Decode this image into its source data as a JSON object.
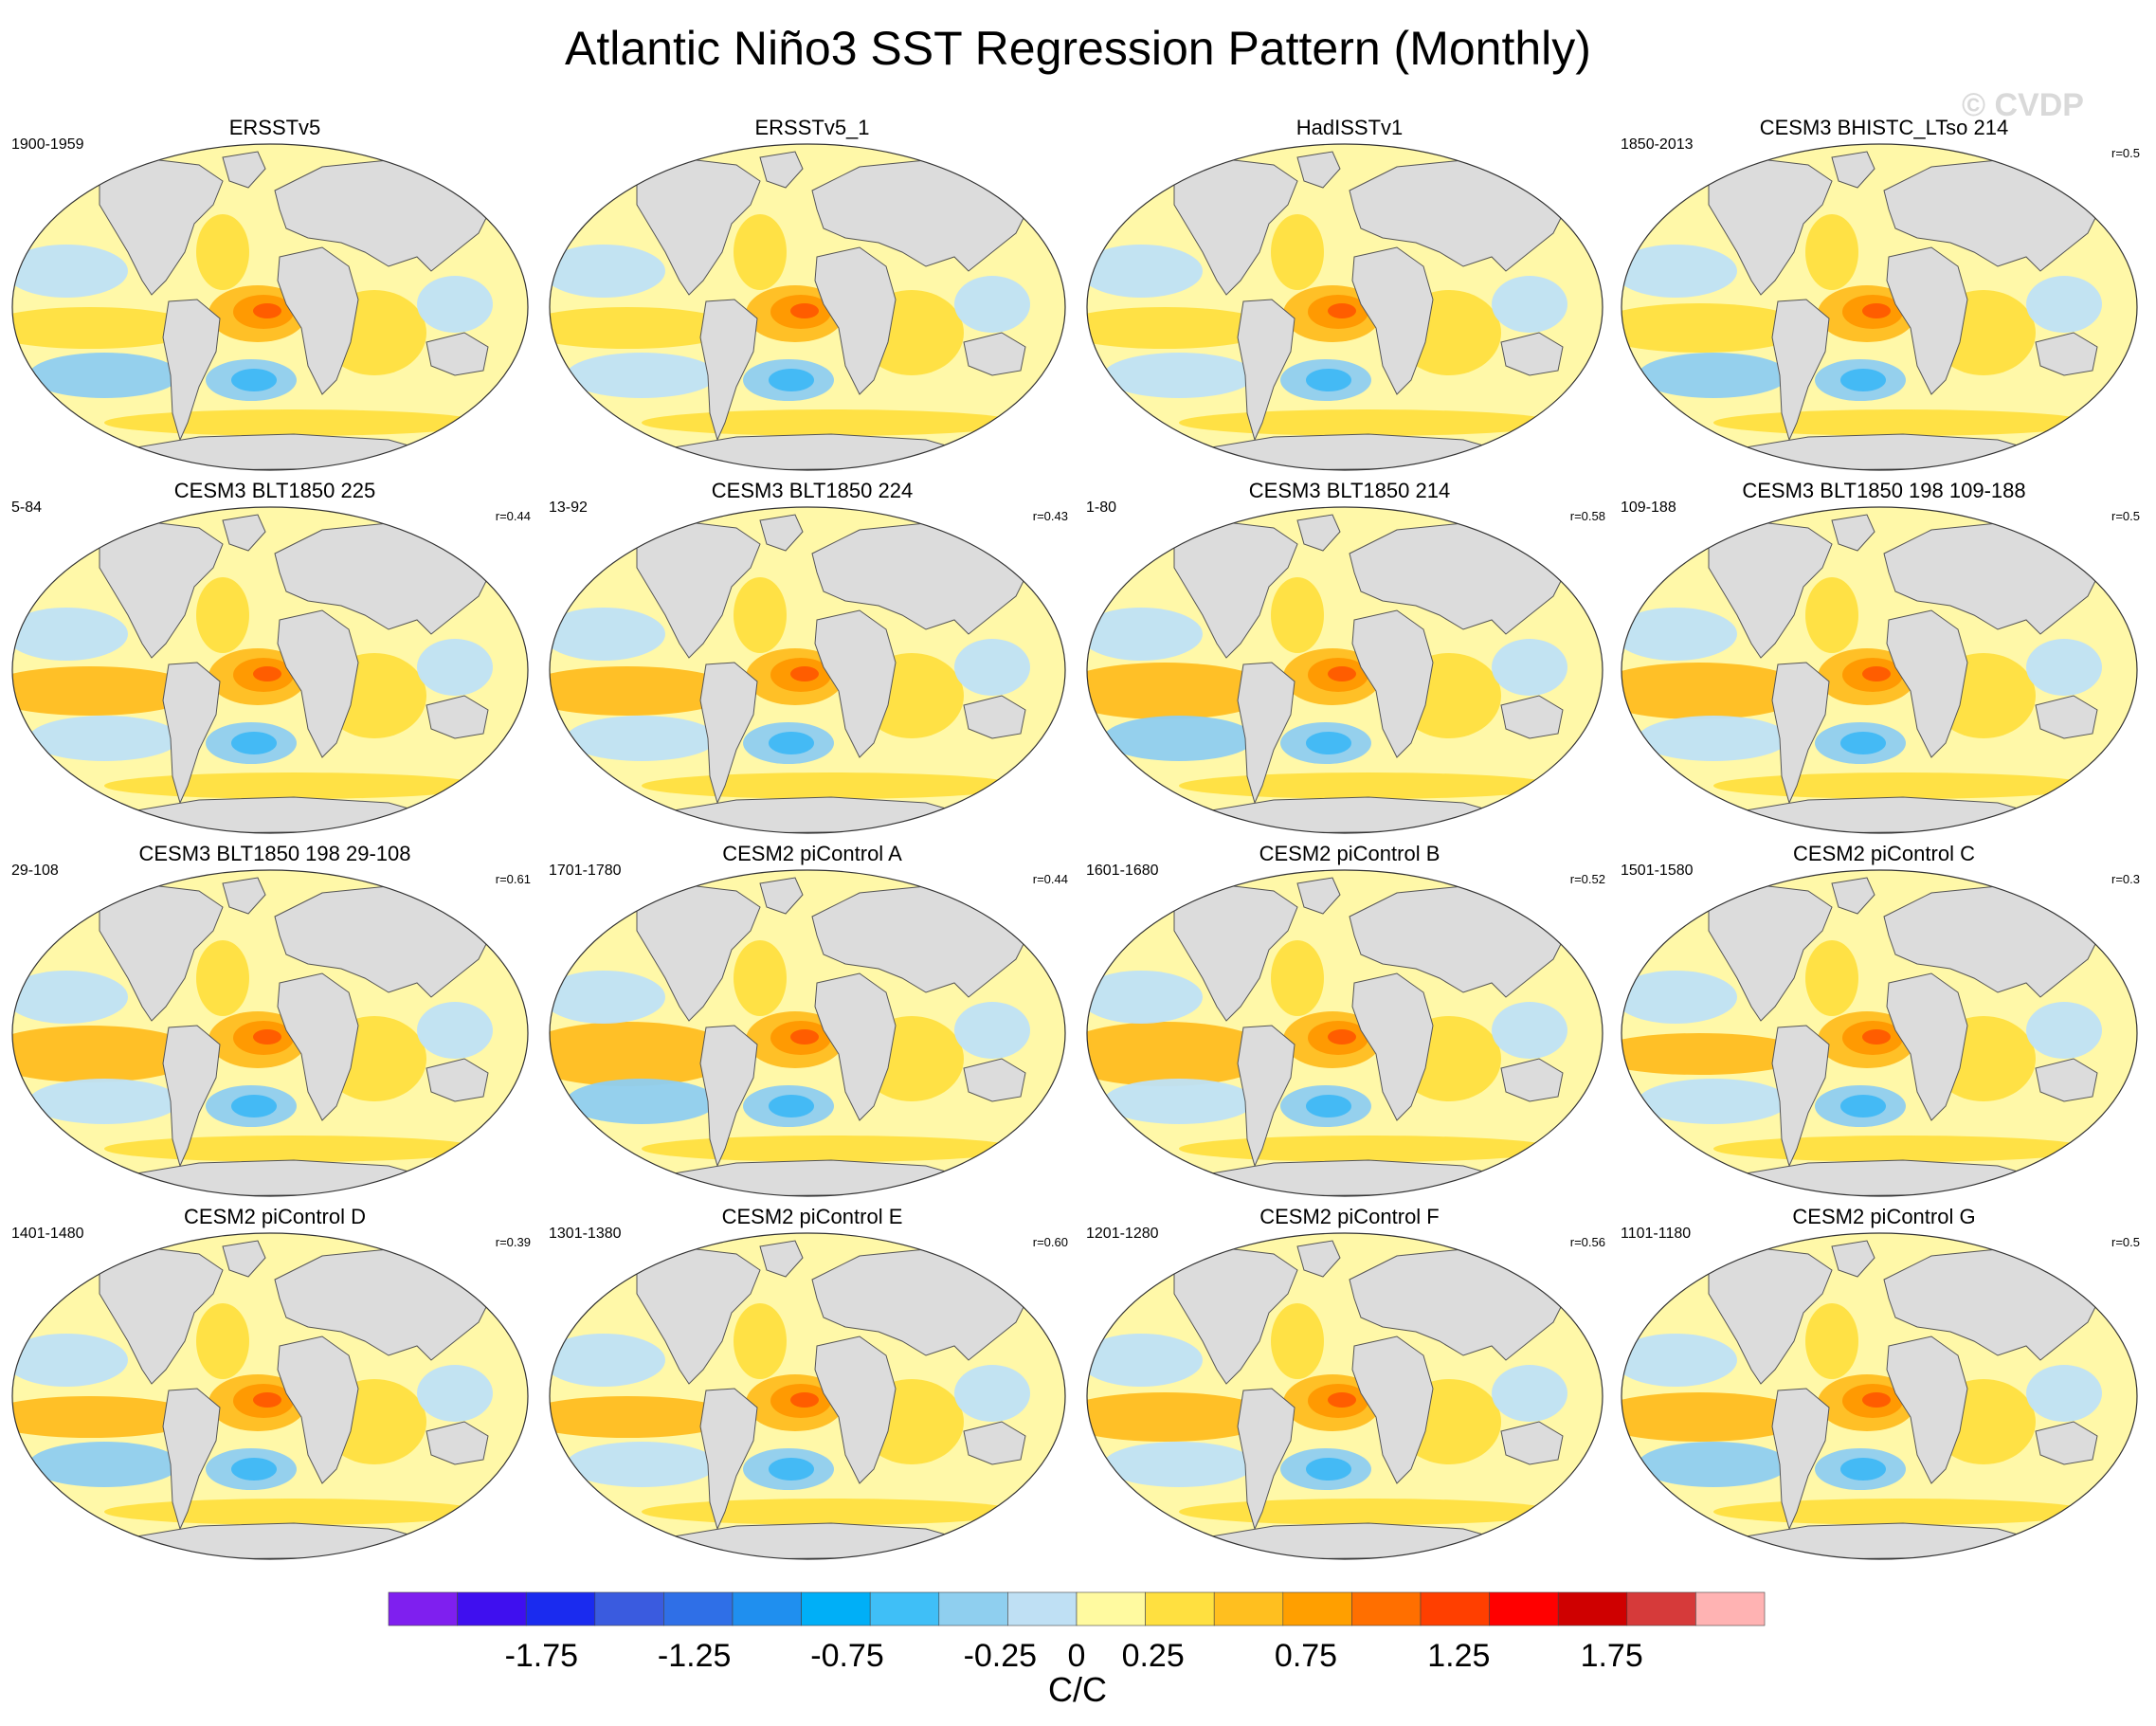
{
  "title": "Atlantic Niño3 SST Regression Pattern (Monthly)",
  "watermark": "© CVDP",
  "chart_data": {
    "type": "heatmap",
    "projection": "global map (elliptical)",
    "panels": [
      {
        "name": "ERSSTv5",
        "period": "1900-1959",
        "r": ""
      },
      {
        "name": "ERSSTv5_1",
        "period": "",
        "r": ""
      },
      {
        "name": "HadISSTv1",
        "period": "",
        "r": ""
      },
      {
        "name": "CESM3 BHISTC_LTso 214",
        "period": "1850-2013",
        "r": "r=0.5"
      },
      {
        "name": "CESM3 BLT1850 225",
        "period": "5-84",
        "r": "r=0.44"
      },
      {
        "name": "CESM3 BLT1850 224",
        "period": "13-92",
        "r": "r=0.43"
      },
      {
        "name": "CESM3 BLT1850 214",
        "period": "1-80",
        "r": "r=0.58"
      },
      {
        "name": "CESM3 BLT1850 198 109-188",
        "period": "109-188",
        "r": "r=0.5"
      },
      {
        "name": "CESM3 BLT1850 198 29-108",
        "period": "29-108",
        "r": "r=0.61"
      },
      {
        "name": "CESM2 piControl A",
        "period": "1701-1780",
        "r": "r=0.44"
      },
      {
        "name": "CESM2 piControl B",
        "period": "1601-1680",
        "r": "r=0.52"
      },
      {
        "name": "CESM2 piControl C",
        "period": "1501-1580",
        "r": "r=0.3"
      },
      {
        "name": "CESM2 piControl D",
        "period": "1401-1480",
        "r": "r=0.39"
      },
      {
        "name": "CESM2 piControl E",
        "period": "1301-1380",
        "r": "r=0.60"
      },
      {
        "name": "CESM2 piControl F",
        "period": "1201-1280",
        "r": "r=0.56"
      },
      {
        "name": "CESM2 piControl G",
        "period": "1101-1180",
        "r": "r=0.5"
      }
    ],
    "colorbar": {
      "label": "C/C",
      "range": [
        -2.25,
        2.25
      ],
      "step": 0.25,
      "tick_labels": [
        "-1.75",
        "-1.25",
        "-0.75",
        "-0.25",
        "0",
        "0.25",
        "0.75",
        "1.25",
        "1.75"
      ],
      "colors": [
        "#7f1fef",
        "#3f0fef",
        "#1a2bef",
        "#3a5bdf",
        "#2f6fe7",
        "#1f8fef",
        "#00aff7",
        "#3fbff7",
        "#8fcfef",
        "#bfe0f4",
        "#fffaa0",
        "#ffe040",
        "#ffbf1f",
        "#ff9f00",
        "#ff6f00",
        "#ff3f00",
        "#ff0000",
        "#cf0000",
        "#d63a3a",
        "#ffb3b3"
      ]
    },
    "value_colors": {
      "ocean_neutral": "#fff8a8",
      "land": "#dcdcdc",
      "warm_light": "#ffdf3f",
      "warm_mid": "#ffbd20",
      "warm_strong": "#ff9800",
      "warm_core": "#ff5a00",
      "cool_light": "#bfe2f5",
      "cool_mid": "#8fcdf0",
      "cool_strong": "#3fb8f5"
    }
  }
}
